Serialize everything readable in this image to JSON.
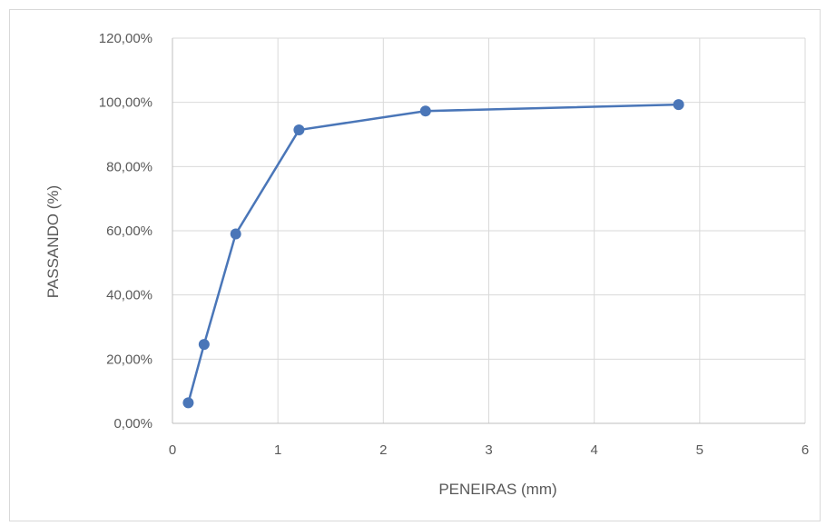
{
  "chart_data": {
    "type": "scatter",
    "title": "",
    "xlabel": "PENEIRAS (mm)",
    "ylabel": "PASSANDO (%)",
    "xlim": [
      0,
      6
    ],
    "ylim": [
      0,
      120
    ],
    "x_ticks": [
      "0",
      "1",
      "2",
      "3",
      "4",
      "5",
      "6"
    ],
    "y_ticks": [
      "0,00%",
      "20,00%",
      "40,00%",
      "60,00%",
      "80,00%",
      "100,00%",
      "120,00%"
    ],
    "grid": true,
    "legend": "none",
    "series": [
      {
        "x": [
          0.15,
          0.3,
          0.6,
          1.2,
          2.4,
          4.8
        ],
        "y": [
          6.4,
          24.6,
          59.0,
          91.4,
          97.3,
          99.3
        ]
      }
    ],
    "colors": {
      "series": "#4a76b8",
      "grid": "#d9d9d9",
      "axis": "#bfbfbf",
      "text": "#595959"
    }
  }
}
